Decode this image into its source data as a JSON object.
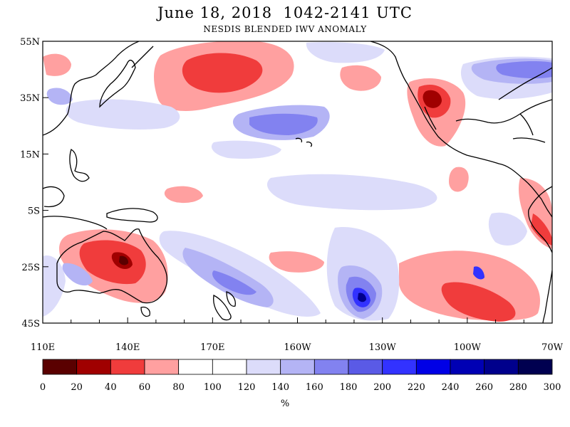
{
  "title": "June 18, 2018  1042-2141 UTC",
  "subtitle": "NESDIS BLENDED IWV ANOMALY",
  "map": {
    "lon_range": [
      110,
      290
    ],
    "lat_range": [
      -45,
      55
    ],
    "lat_ticks": [
      {
        "lat": 55,
        "label": "55N"
      },
      {
        "lat": 35,
        "label": "35N"
      },
      {
        "lat": 15,
        "label": "15N"
      },
      {
        "lat": -5,
        "label": "5S"
      },
      {
        "lat": -25,
        "label": "25S"
      },
      {
        "lat": -45,
        "label": "45S"
      }
    ],
    "lon_ticks": [
      {
        "lon": 110,
        "label": "110E"
      },
      {
        "lon": 140,
        "label": "140E"
      },
      {
        "lon": 170,
        "label": "170E"
      },
      {
        "lon": 200,
        "label": "160W"
      },
      {
        "lon": 230,
        "label": "130W"
      },
      {
        "lon": 260,
        "label": "100W"
      },
      {
        "lon": 290,
        "label": "70W"
      }
    ]
  },
  "colorbar": {
    "labels": [
      "0",
      "20",
      "40",
      "60",
      "80",
      "100",
      "120",
      "140",
      "160",
      "180",
      "200",
      "220",
      "240",
      "260",
      "280",
      "300"
    ],
    "colors": [
      "#5a0000",
      "#a00000",
      "#f03c3c",
      "#ffa0a0",
      "#ffffff",
      "#ffffff",
      "#dcdcfa",
      "#b4b4f5",
      "#8282f0",
      "#5a5ae6",
      "#3232ff",
      "#0000e6",
      "#0000b4",
      "#00008c",
      "#000050"
    ],
    "units": "%"
  }
}
